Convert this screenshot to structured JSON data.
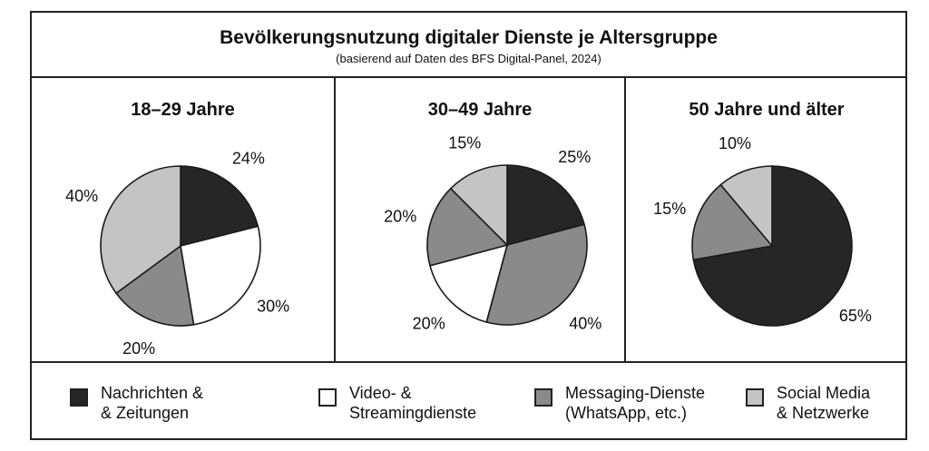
{
  "header": {
    "title": "Bevölkerungsnutzung digitaler Dienste je Altersgruppe",
    "subtitle": "(basierend auf Daten des BFS Digital-Panel, 2024)"
  },
  "colors": {
    "nachrichten": "#262626",
    "video": "#ffffff",
    "messaging": "#8a8a8a",
    "social": "#c4c4c4"
  },
  "legend": [
    {
      "label": "Nachrichten &\n& Zeitungen",
      "key": "nachrichten"
    },
    {
      "label": "Video- &\nStreamingdienste",
      "key": "video"
    },
    {
      "label": "Messaging-Dienste\n(WhatsApp, etc.)",
      "key": "messaging"
    },
    {
      "label": "Social Media\n& Netzwerke",
      "key": "social"
    }
  ],
  "chart_data": [
    {
      "type": "pie",
      "title": "18–29 Jahre",
      "slices": [
        {
          "category": "Nachrichten & Zeitungen",
          "key": "nachrichten",
          "value": 24,
          "label": "24%"
        },
        {
          "category": "Video- & Streamingdienste",
          "key": "video",
          "value": 30,
          "label": "30%"
        },
        {
          "category": "Messaging-Dienste (WhatsApp, etc.)",
          "key": "messaging",
          "value": 20,
          "label": "20%"
        },
        {
          "category": "Social Media & Netzwerke",
          "key": "social",
          "value": 40,
          "label": "40%"
        }
      ]
    },
    {
      "type": "pie",
      "title": "30–49 Jahre",
      "slices": [
        {
          "category": "Nachrichten & Zeitungen",
          "key": "nachrichten",
          "value": 25,
          "label": "25%"
        },
        {
          "category": "Messaging-Dienste (WhatsApp, etc.)",
          "key": "messaging",
          "value": 40,
          "label": "40%"
        },
        {
          "category": "Video- & Streamingdienste",
          "key": "video",
          "value": 20,
          "label": "20%"
        },
        {
          "category": "Messaging-Dienste (WhatsApp, etc.)",
          "key": "messaging",
          "value": 20,
          "label": "20%"
        },
        {
          "category": "Social Media & Netzwerke",
          "key": "social",
          "value": 15,
          "label": "15%"
        }
      ]
    },
    {
      "type": "pie",
      "title": "50 Jahre und älter",
      "slices": [
        {
          "category": "Nachrichten & Zeitungen",
          "key": "nachrichten",
          "value": 65,
          "label": "65%"
        },
        {
          "category": "Messaging-Dienste (WhatsApp, etc.)",
          "key": "messaging",
          "value": 15,
          "label": "15%"
        },
        {
          "category": "Social Media & Netzwerke",
          "key": "social",
          "value": 10,
          "label": "10%"
        }
      ]
    }
  ]
}
